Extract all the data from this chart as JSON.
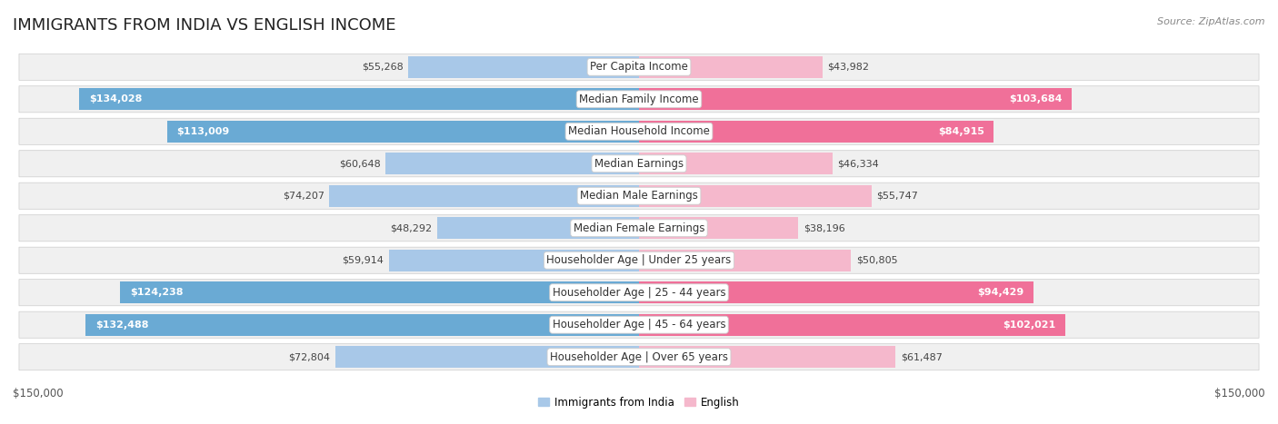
{
  "title": "IMMIGRANTS FROM INDIA VS ENGLISH INCOME",
  "source": "Source: ZipAtlas.com",
  "categories": [
    "Per Capita Income",
    "Median Family Income",
    "Median Household Income",
    "Median Earnings",
    "Median Male Earnings",
    "Median Female Earnings",
    "Householder Age | Under 25 years",
    "Householder Age | 25 - 44 years",
    "Householder Age | 45 - 64 years",
    "Householder Age | Over 65 years"
  ],
  "india_values": [
    55268,
    134028,
    113009,
    60648,
    74207,
    48292,
    59914,
    124238,
    132488,
    72804
  ],
  "english_values": [
    43982,
    103684,
    84915,
    46334,
    55747,
    38196,
    50805,
    94429,
    102021,
    61487
  ],
  "india_color_light": "#a8c8e8",
  "india_color_dark": "#6aaad4",
  "english_color_light": "#f5b8cc",
  "english_color_dark": "#f07099",
  "india_label": "Immigrants from India",
  "english_label": "English",
  "max_value": 150000,
  "bg_color": "#ffffff",
  "row_bg": "#f0f0f0",
  "xlabel_left": "$150,000",
  "xlabel_right": "$150,000",
  "title_fontsize": 13,
  "label_fontsize": 8.5,
  "value_fontsize": 8,
  "axis_fontsize": 8.5,
  "india_threshold": 82500,
  "english_threshold": 82500
}
